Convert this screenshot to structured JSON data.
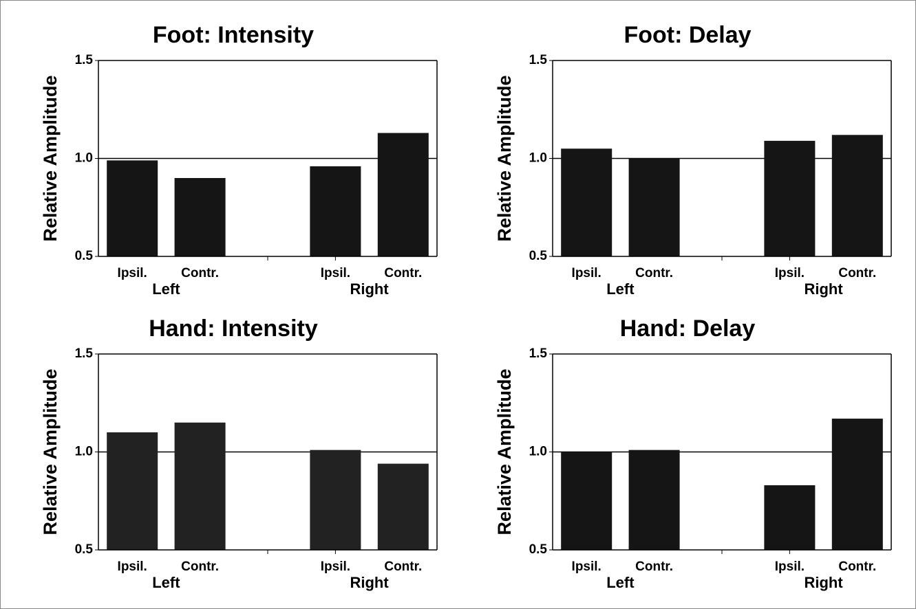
{
  "chart_data": [
    {
      "type": "bar",
      "title": "Foot: Intensity",
      "ylabel": "Relative Amplitude",
      "categories": [
        "Ipsil.",
        "Contr.",
        null,
        "Ipsil.",
        "Contr."
      ],
      "values": [
        0.99,
        0.9,
        null,
        0.96,
        1.13
      ],
      "groups": [
        "Left",
        "Right"
      ],
      "ylim": [
        0.5,
        1.5
      ],
      "yticks": [
        0.5,
        {
          "value": 1,
          "label": "1.0"
        },
        1.5
      ],
      "reference_line": 1,
      "color": "#151515"
    },
    {
      "type": "bar",
      "title": "Foot: Delay",
      "ylabel": "Relative Amplitude",
      "categories": [
        "Ipsil.",
        "Contr.",
        null,
        "Ipsil.",
        "Contr."
      ],
      "values": [
        1.05,
        1.0,
        null,
        1.09,
        1.12
      ],
      "groups": [
        "Left",
        "Right"
      ],
      "ylim": [
        0.5,
        1.5
      ],
      "yticks": [
        0.5,
        {
          "value": 1,
          "label": "1.0"
        },
        1.5
      ],
      "reference_line": 1,
      "color": "#151515"
    },
    {
      "type": "bar",
      "title": "Hand: Intensity",
      "ylabel": "Relative Amplitude",
      "categories": [
        "Ipsil.",
        "Contr.",
        null,
        "Ipsil.",
        "Contr."
      ],
      "values": [
        1.1,
        1.15,
        null,
        1.01,
        0.94
      ],
      "groups": [
        "Left",
        "Right"
      ],
      "ylim": [
        0.5,
        1.5
      ],
      "yticks": [
        0.5,
        {
          "value": 1,
          "label": "1.0"
        },
        1.5
      ],
      "reference_line": 1,
      "color": "#222222"
    },
    {
      "type": "bar",
      "title": "Hand: Delay",
      "ylabel": "Relative Amplitude",
      "categories": [
        "Ipsil.",
        "Contr.",
        null,
        "Ipsil.",
        "Contr."
      ],
      "values": [
        1.0,
        1.01,
        null,
        0.83,
        1.17
      ],
      "groups": [
        "Left",
        "Right"
      ],
      "ylim": [
        0.5,
        1.5
      ],
      "yticks": [
        0.5,
        {
          "value": 1,
          "label": "1.0"
        },
        1.5
      ],
      "reference_line": 1,
      "color": "#151515"
    }
  ]
}
